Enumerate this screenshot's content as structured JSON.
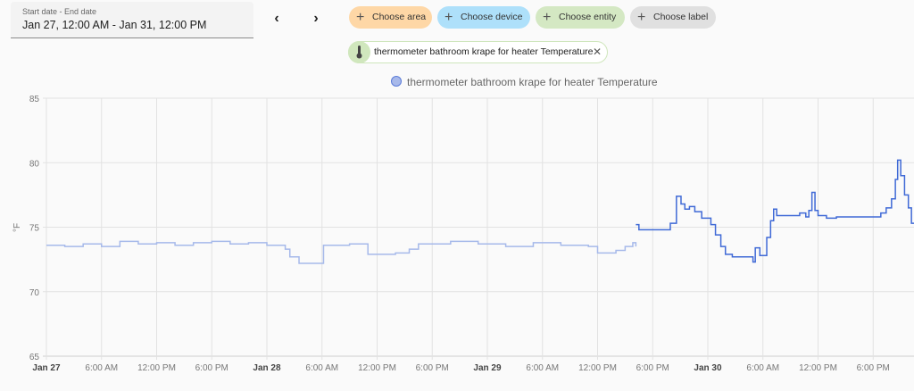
{
  "date_picker": {
    "label": "Start date - End date",
    "value": "Jan 27, 12:00 AM - Jan 31, 12:00 PM"
  },
  "nav": {
    "prev_icon": "chevron-left-icon",
    "next_icon": "chevron-right-icon"
  },
  "target_chips": [
    {
      "label": "Choose area",
      "color": "#fed7a6"
    },
    {
      "label": "Choose device",
      "color": "#aee0fa"
    },
    {
      "label": "Choose entity",
      "color": "#d4e8c3"
    },
    {
      "label": "Choose label",
      "color": "#e0e0e0"
    }
  ],
  "selected_entity": {
    "label": "thermometer bathroom krape for heater Temperature",
    "icon": "thermometer-icon"
  },
  "chart_data": {
    "type": "line",
    "legend": [
      {
        "name": "thermometer bathroom krape for heater Temperature",
        "placement": "top-center"
      }
    ],
    "ylabel": "°F",
    "ylim": [
      65,
      85
    ],
    "yticks": [
      "85",
      "80",
      "75",
      "70",
      "65"
    ],
    "xlim": [
      "Jan 27 00:00",
      "Jan 30 22:35"
    ],
    "xticks": [
      {
        "t": "Jan 27 00:00",
        "label": "Jan 27",
        "bold": true
      },
      {
        "t": "Jan 27 06:00",
        "label": "6:00 AM"
      },
      {
        "t": "Jan 27 12:00",
        "label": "12:00 PM"
      },
      {
        "t": "Jan 27 18:00",
        "label": "6:00 PM"
      },
      {
        "t": "Jan 28 00:00",
        "label": "Jan 28",
        "bold": true
      },
      {
        "t": "Jan 28 06:00",
        "label": "6:00 AM"
      },
      {
        "t": "Jan 28 12:00",
        "label": "12:00 PM"
      },
      {
        "t": "Jan 28 18:00",
        "label": "6:00 PM"
      },
      {
        "t": "Jan 29 00:00",
        "label": "Jan 29",
        "bold": true
      },
      {
        "t": "Jan 29 06:00",
        "label": "6:00 AM"
      },
      {
        "t": "Jan 29 12:00",
        "label": "12:00 PM"
      },
      {
        "t": "Jan 29 18:00",
        "label": "6:00 PM"
      },
      {
        "t": "Jan 30 00:00",
        "label": "Jan 30",
        "bold": true
      },
      {
        "t": "Jan 30 06:00",
        "label": "6:00 AM"
      },
      {
        "t": "Jan 30 12:00",
        "label": "12:00 PM"
      },
      {
        "t": "Jan 30 18:00",
        "label": "6:00 PM"
      }
    ],
    "grid": true,
    "step": true,
    "series": [
      {
        "color": "#a6b9ea",
        "points": [
          [
            "Jan 27 00:00",
            73.6
          ],
          [
            "Jan 27 02:00",
            73.5
          ],
          [
            "Jan 27 04:00",
            73.7
          ],
          [
            "Jan 27 06:00",
            73.5
          ],
          [
            "Jan 27 08:00",
            73.9
          ],
          [
            "Jan 27 10:00",
            73.7
          ],
          [
            "Jan 27 12:00",
            73.8
          ],
          [
            "Jan 27 14:00",
            73.6
          ],
          [
            "Jan 27 16:00",
            73.8
          ],
          [
            "Jan 27 18:00",
            73.9
          ],
          [
            "Jan 27 20:00",
            73.7
          ],
          [
            "Jan 27 22:00",
            73.8
          ],
          [
            "Jan 28 00:00",
            73.6
          ],
          [
            "Jan 28 02:00",
            73.3
          ],
          [
            "Jan 28 02:30",
            72.7
          ],
          [
            "Jan 28 03:30",
            72.2
          ],
          [
            "Jan 28 06:10",
            73.6
          ],
          [
            "Jan 28 09:00",
            73.7
          ],
          [
            "Jan 28 11:00",
            72.9
          ],
          [
            "Jan 28 14:00",
            73.0
          ],
          [
            "Jan 28 15:30",
            73.3
          ],
          [
            "Jan 28 16:30",
            73.7
          ],
          [
            "Jan 28 20:00",
            73.9
          ],
          [
            "Jan 28 23:00",
            73.7
          ],
          [
            "Jan 29 02:00",
            73.5
          ],
          [
            "Jan 29 05:00",
            73.8
          ],
          [
            "Jan 29 08:00",
            73.6
          ],
          [
            "Jan 29 11:00",
            73.5
          ],
          [
            "Jan 29 12:00",
            73.0
          ],
          [
            "Jan 29 14:00",
            73.2
          ],
          [
            "Jan 29 15:00",
            73.5
          ],
          [
            "Jan 29 15:50",
            73.8
          ],
          [
            "Jan 29 16:10",
            73.5
          ]
        ]
      },
      {
        "color": "#3f69d6",
        "points": [
          [
            "Jan 29 16:10",
            75.2
          ],
          [
            "Jan 29 16:30",
            74.8
          ],
          [
            "Jan 29 19:55",
            75.3
          ],
          [
            "Jan 29 20:35",
            77.4
          ],
          [
            "Jan 29 21:05",
            76.8
          ],
          [
            "Jan 29 21:30",
            76.4
          ],
          [
            "Jan 29 22:00",
            76.6
          ],
          [
            "Jan 29 22:35",
            76.2
          ],
          [
            "Jan 29 23:20",
            75.7
          ],
          [
            "Jan 30 00:20",
            75.2
          ],
          [
            "Jan 30 00:50",
            74.4
          ],
          [
            "Jan 30 01:25",
            73.5
          ],
          [
            "Jan 30 01:55",
            72.9
          ],
          [
            "Jan 30 02:40",
            72.7
          ],
          [
            "Jan 30 04:55",
            72.3
          ],
          [
            "Jan 30 05:10",
            73.4
          ],
          [
            "Jan 30 05:40",
            72.8
          ],
          [
            "Jan 30 06:25",
            74.2
          ],
          [
            "Jan 30 06:50",
            75.5
          ],
          [
            "Jan 30 07:10",
            76.4
          ],
          [
            "Jan 30 07:30",
            75.9
          ],
          [
            "Jan 30 10:00",
            76.1
          ],
          [
            "Jan 30 10:40",
            75.8
          ],
          [
            "Jan 30 11:00",
            76.3
          ],
          [
            "Jan 30 11:20",
            77.7
          ],
          [
            "Jan 30 11:40",
            76.3
          ],
          [
            "Jan 30 12:00",
            75.9
          ],
          [
            "Jan 30 12:55",
            75.7
          ],
          [
            "Jan 30 14:00",
            75.8
          ],
          [
            "Jan 30 18:50",
            76.1
          ],
          [
            "Jan 30 19:25",
            76.5
          ],
          [
            "Jan 30 20:00",
            77.2
          ],
          [
            "Jan 30 20:25",
            78.7
          ],
          [
            "Jan 30 20:40",
            80.2
          ],
          [
            "Jan 30 21:00",
            79.0
          ],
          [
            "Jan 30 21:25",
            77.5
          ],
          [
            "Jan 30 21:50",
            76.5
          ],
          [
            "Jan 30 22:10",
            75.3
          ],
          [
            "Jan 30 22:35",
            74.7
          ]
        ]
      }
    ]
  }
}
